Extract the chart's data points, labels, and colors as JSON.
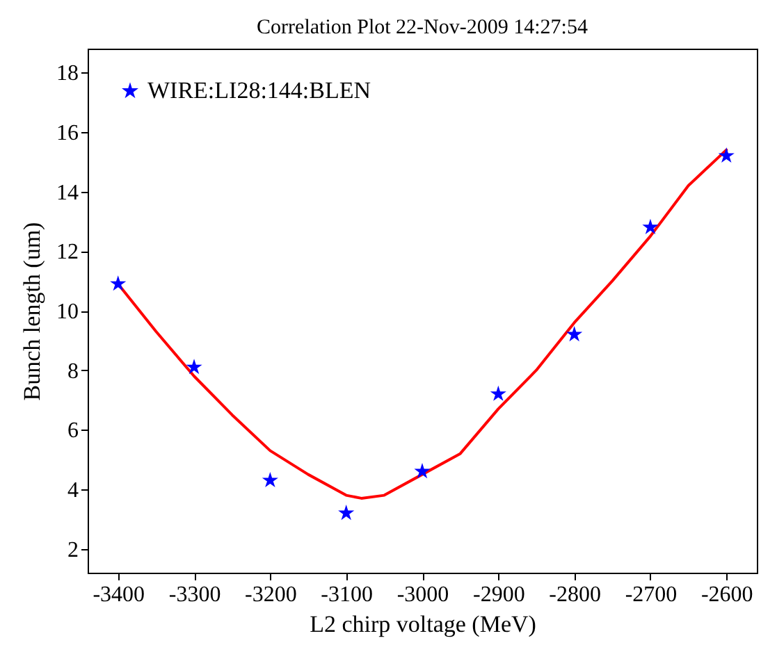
{
  "chart_data": {
    "type": "scatter",
    "title": "Correlation Plot 22-Nov-2009 14:27:54",
    "xlabel": "L2 chirp voltage (MeV)",
    "ylabel": "Bunch length (um)",
    "xlim": [
      -3440,
      -2560
    ],
    "xticks": [
      -3400,
      -3300,
      -3200,
      -3100,
      -3000,
      -2900,
      -2800,
      -2700,
      -2600
    ],
    "ylim": [
      1.2,
      18.8
    ],
    "yticks": [
      2,
      4,
      6,
      8,
      10,
      12,
      14,
      16,
      18
    ],
    "x": [
      -3400,
      -3300,
      -3200,
      -3100,
      -3000,
      -2900,
      -2800,
      -2700,
      -2600
    ],
    "series": [
      {
        "name": "WIRE:LI28:144:BLEN",
        "color": "#0000ff",
        "marker": "star",
        "values": [
          10.9,
          8.1,
          4.3,
          3.2,
          4.6,
          7.2,
          9.2,
          12.8,
          15.2
        ]
      },
      {
        "type": "line",
        "color": "#ff0000",
        "line_style": "solid",
        "x": [
          -3400,
          -3350,
          -3300,
          -3250,
          -3200,
          -3150,
          -3100,
          -3080,
          -3050,
          -3000,
          -2950,
          -2900,
          -2850,
          -2800,
          -2750,
          -2700,
          -2650,
          -2600
        ],
        "values": [
          10.9,
          9.3,
          7.8,
          6.5,
          5.3,
          4.5,
          3.8,
          3.7,
          3.8,
          4.5,
          5.2,
          6.7,
          8.0,
          9.6,
          11.0,
          12.5,
          14.2,
          15.4
        ]
      }
    ],
    "grid": false,
    "legend": "top left"
  }
}
